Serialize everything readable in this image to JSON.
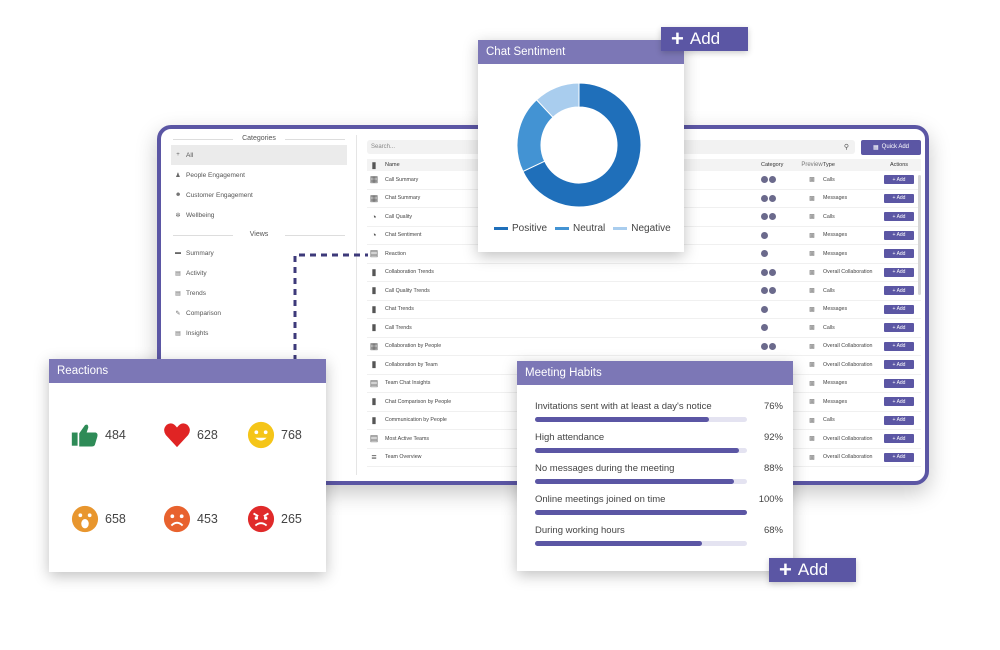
{
  "sidebar": {
    "categories_heading": "Categories",
    "categories": [
      {
        "label": "All",
        "icon": "plus-icon"
      },
      {
        "label": "People Engagement",
        "icon": "people-icon"
      },
      {
        "label": "Customer Engagement",
        "icon": "customer-icon"
      },
      {
        "label": "Wellbeing",
        "icon": "wellbeing-icon"
      }
    ],
    "views_heading": "Views",
    "views": [
      {
        "label": "Summary",
        "icon": "summary-icon"
      },
      {
        "label": "Activity",
        "icon": "activity-icon"
      },
      {
        "label": "Trends",
        "icon": "trends-icon"
      },
      {
        "label": "Comparison",
        "icon": "comparison-icon"
      },
      {
        "label": "Insights",
        "icon": "insights-icon"
      }
    ]
  },
  "search": {
    "placeholder": "Search..."
  },
  "quick_add_label": "Quick Add",
  "table": {
    "headers": {
      "name": "Name",
      "category": "Category",
      "preview": "Preview",
      "type": "Type",
      "actions": "Actions"
    },
    "add_label": "+ Add",
    "rows": [
      {
        "name": "Call Summary",
        "type": "Calls",
        "icon": "grid-icon",
        "cats": 2
      },
      {
        "name": "Chat Summary",
        "type": "Messages",
        "icon": "grid-icon",
        "cats": 2
      },
      {
        "name": "Call Quality",
        "type": "Calls",
        "icon": "pie-icon",
        "cats": 2
      },
      {
        "name": "Chat Sentiment",
        "type": "Messages",
        "icon": "pie-icon",
        "cats": 1
      },
      {
        "name": "Reaction",
        "type": "Messages",
        "icon": "card-icon",
        "cats": 1
      },
      {
        "name": "Collaboration Trends",
        "type": "Overall Collaboration",
        "icon": "bar-icon",
        "cats": 2
      },
      {
        "name": "Call Quality Trends",
        "type": "Calls",
        "icon": "bar-icon",
        "cats": 2
      },
      {
        "name": "Chat Trends",
        "type": "Messages",
        "icon": "bar-icon",
        "cats": 1
      },
      {
        "name": "Call Trends",
        "type": "Calls",
        "icon": "bar-icon",
        "cats": 1
      },
      {
        "name": "Collaboration by People",
        "type": "Overall Collaboration",
        "icon": "grid-icon",
        "cats": 2
      },
      {
        "name": "Collaboration by Team",
        "type": "Overall Collaboration",
        "icon": "bar-icon",
        "cats": 1
      },
      {
        "name": "Team Chat Insights",
        "type": "Messages",
        "icon": "card-icon",
        "cats": 1
      },
      {
        "name": "Chat Comparison by People",
        "type": "Messages",
        "icon": "bar-icon",
        "cats": 1
      },
      {
        "name": "Communication by People",
        "type": "Calls",
        "icon": "bar-icon",
        "cats": 1
      },
      {
        "name": "Most Active Teams",
        "type": "Overall Collaboration",
        "icon": "card-icon",
        "cats": 1
      },
      {
        "name": "Team Overview",
        "type": "Overall Collaboration",
        "icon": "list-icon",
        "cats": 1
      }
    ]
  },
  "sentiment": {
    "title": "Chat Sentiment",
    "add_label": "Add",
    "colors": {
      "positive": "#1f6fba",
      "neutral": "#4393d3",
      "negative": "#a9cdee"
    },
    "legend": [
      {
        "label": "Positive",
        "color": "#1f6fba"
      },
      {
        "label": "Neutral",
        "color": "#4393d3"
      },
      {
        "label": "Negative",
        "color": "#a9cdee"
      }
    ]
  },
  "chart_data": {
    "type": "pie",
    "title": "Chat Sentiment",
    "categories": [
      "Positive",
      "Neutral",
      "Negative"
    ],
    "values": [
      68,
      20,
      12
    ],
    "donut": true
  },
  "reactions": {
    "title": "Reactions",
    "items": [
      {
        "icon": "thumbs-up-icon",
        "count": "484",
        "color": "#2e8b57"
      },
      {
        "icon": "heart-icon",
        "count": "628",
        "color": "#e02424"
      },
      {
        "icon": "smile-icon",
        "count": "768",
        "color": "#f5c518"
      },
      {
        "icon": "surprised-icon",
        "count": "658",
        "color": "#e8962e"
      },
      {
        "icon": "sad-icon",
        "count": "453",
        "color": "#e8622e"
      },
      {
        "icon": "angry-icon",
        "count": "265",
        "color": "#e02a2a"
      }
    ]
  },
  "habits": {
    "title": "Meeting Habits",
    "add_label": "Add",
    "items": [
      {
        "label": "Invitations sent with at least a day's notice",
        "value": "76%",
        "fraction": 0.82
      },
      {
        "label": "High attendance",
        "value": "92%",
        "fraction": 0.96
      },
      {
        "label": "No messages during the meeting",
        "value": "88%",
        "fraction": 0.94
      },
      {
        "label": "Online meetings joined on time",
        "value": "100%",
        "fraction": 1.0
      },
      {
        "label": "During working hours",
        "value": "68%",
        "fraction": 0.79
      }
    ]
  }
}
